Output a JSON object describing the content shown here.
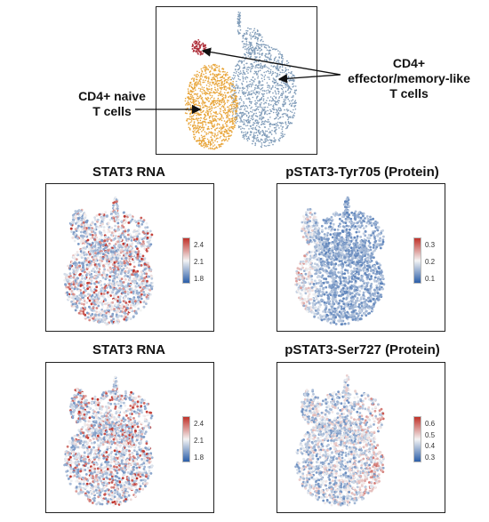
{
  "top": {
    "label_naive": [
      "CD4+ naive",
      "T cells"
    ],
    "label_effector": [
      "CD4+",
      "effector/memory-like",
      "T cells"
    ]
  },
  "panels": [
    {
      "title": "STAT3 RNA",
      "scheme": "rna",
      "ticks": [
        "2.4",
        "2.1",
        "1.8"
      ]
    },
    {
      "title": "pSTAT3-Tyr705 (Protein)",
      "scheme": "tyr",
      "ticks": [
        "0.3",
        "0.2",
        "0.1"
      ]
    },
    {
      "title": "STAT3 RNA",
      "scheme": "rna",
      "ticks": [
        "2.4",
        "2.1",
        "1.8"
      ]
    },
    {
      "title": "pSTAT3-Ser727 (Protein)",
      "scheme": "ser",
      "ticks": [
        "0.6",
        "0.5",
        "0.4",
        "0.3"
      ]
    }
  ],
  "colors": {
    "naive": "#e8a53a",
    "effector": "#7f9bb8",
    "cluster": "#b0343f",
    "scale_low": "#2b5ea8",
    "scale_mid": "#f4f4f4",
    "scale_high": "#c0322a"
  }
}
